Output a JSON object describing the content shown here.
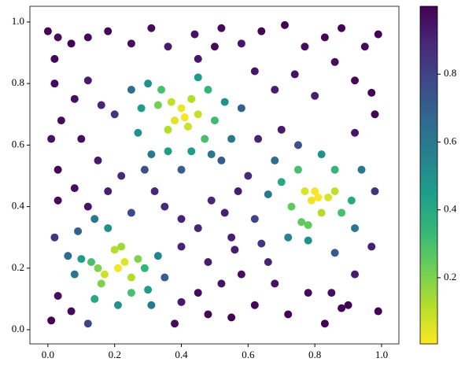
{
  "chart_data": {
    "type": "scatter",
    "x": [
      0.4,
      0.41,
      0.38,
      0.37,
      0.42,
      0.36,
      0.43,
      0.33,
      0.45,
      0.34,
      0.3,
      0.28,
      0.47,
      0.48,
      0.36,
      0.5,
      0.27,
      0.31,
      0.43,
      0.49,
      0.45,
      0.25,
      0.53,
      0.55,
      0.4,
      0.29,
      0.52,
      0.2,
      0.58,
      0.8,
      0.79,
      0.81,
      0.77,
      0.84,
      0.86,
      0.78,
      0.76,
      0.82,
      0.75,
      0.88,
      0.73,
      0.86,
      0.7,
      0.78,
      0.91,
      0.72,
      0.82,
      0.66,
      0.92,
      0.68,
      0.86,
      0.94,
      0.62,
      0.75,
      0.98,
      0.64,
      0.21,
      0.17,
      0.23,
      0.2,
      0.15,
      0.16,
      0.25,
      0.22,
      0.27,
      0.13,
      0.14,
      0.25,
      0.29,
      0.1,
      0.18,
      0.3,
      0.14,
      0.08,
      0.21,
      0.31,
      0.06,
      0.09,
      0.33,
      0.02,
      0.12,
      0.25,
      0.35,
      0.0,
      0.03,
      0.07,
      0.12,
      0.18,
      0.25,
      0.31,
      0.36,
      0.44,
      0.52,
      0.58,
      0.64,
      0.71,
      0.77,
      0.83,
      0.88,
      0.95,
      0.99,
      0.02,
      0.08,
      0.12,
      0.16,
      0.62,
      0.68,
      0.74,
      0.8,
      0.86,
      0.92,
      0.97,
      0.01,
      0.04,
      0.1,
      0.15,
      0.03,
      0.08,
      0.12,
      0.03,
      0.18,
      0.22,
      0.63,
      0.7,
      0.92,
      0.98,
      0.57,
      0.53,
      0.49,
      0.45,
      0.4,
      0.48,
      0.55,
      0.52,
      0.45,
      0.58,
      0.62,
      0.55,
      0.48,
      0.4,
      0.68,
      0.72,
      0.78,
      0.83,
      0.88,
      0.92,
      0.97,
      0.99,
      0.03,
      0.07,
      0.01,
      0.35,
      0.4,
      0.32,
      0.02,
      0.45,
      0.5,
      0.9,
      0.85,
      0.66,
      0.38,
      0.56,
      0.6
    ],
    "y": [
      0.72,
      0.69,
      0.68,
      0.74,
      0.66,
      0.65,
      0.75,
      0.73,
      0.7,
      0.78,
      0.8,
      0.72,
      0.62,
      0.78,
      0.58,
      0.68,
      0.64,
      0.57,
      0.58,
      0.57,
      0.82,
      0.78,
      0.74,
      0.62,
      0.52,
      0.52,
      0.55,
      0.7,
      0.72,
      0.45,
      0.42,
      0.43,
      0.45,
      0.43,
      0.45,
      0.34,
      0.35,
      0.38,
      0.52,
      0.38,
      0.4,
      0.52,
      0.48,
      0.29,
      0.42,
      0.3,
      0.57,
      0.44,
      0.33,
      0.55,
      0.25,
      0.52,
      0.36,
      0.6,
      0.45,
      0.28,
      0.2,
      0.18,
      0.22,
      0.26,
      0.2,
      0.15,
      0.17,
      0.27,
      0.23,
      0.22,
      0.1,
      0.12,
      0.2,
      0.23,
      0.33,
      0.13,
      0.36,
      0.18,
      0.08,
      0.08,
      0.24,
      0.32,
      0.24,
      0.3,
      0.02,
      0.38,
      0.17,
      0.97,
      0.95,
      0.93,
      0.95,
      0.97,
      0.93,
      0.98,
      0.92,
      0.96,
      0.98,
      0.93,
      0.97,
      0.99,
      0.92,
      0.95,
      0.98,
      0.92,
      0.96,
      0.8,
      0.75,
      0.81,
      0.73,
      0.84,
      0.78,
      0.83,
      0.76,
      0.87,
      0.81,
      0.77,
      0.62,
      0.68,
      0.62,
      0.55,
      0.52,
      0.46,
      0.4,
      0.42,
      0.45,
      0.5,
      0.62,
      0.65,
      0.64,
      0.7,
      0.45,
      0.38,
      0.42,
      0.33,
      0.27,
      0.22,
      0.3,
      0.15,
      0.12,
      0.18,
      0.08,
      0.04,
      0.05,
      0.09,
      0.15,
      0.05,
      0.12,
      0.02,
      0.07,
      0.18,
      0.27,
      0.06,
      0.11,
      0.06,
      0.03,
      0.4,
      0.36,
      0.45,
      0.88,
      0.88,
      0.92,
      0.08,
      0.12,
      0.22,
      0.02,
      0.26,
      0.5
    ],
    "c": [
      0.03,
      0.02,
      0.05,
      0.1,
      0.08,
      0.12,
      0.12,
      0.22,
      0.09,
      0.3,
      0.5,
      0.45,
      0.3,
      0.35,
      0.45,
      0.32,
      0.5,
      0.6,
      0.45,
      0.6,
      0.45,
      0.65,
      0.5,
      0.6,
      0.7,
      0.75,
      0.72,
      0.85,
      0.7,
      0.02,
      0.03,
      0.01,
      0.06,
      0.06,
      0.1,
      0.25,
      0.25,
      0.12,
      0.3,
      0.3,
      0.25,
      0.35,
      0.4,
      0.5,
      0.4,
      0.55,
      0.5,
      0.6,
      0.6,
      0.65,
      0.72,
      0.6,
      0.8,
      0.75,
      0.85,
      0.85,
      0.02,
      0.08,
      0.05,
      0.12,
      0.2,
      0.2,
      0.12,
      0.15,
      0.2,
      0.3,
      0.4,
      0.3,
      0.35,
      0.45,
      0.5,
      0.45,
      0.6,
      0.6,
      0.5,
      0.6,
      0.65,
      0.7,
      0.55,
      0.85,
      0.8,
      0.78,
      0.7,
      0.99,
      0.97,
      1.0,
      0.98,
      0.99,
      0.96,
      0.97,
      0.93,
      0.95,
      0.98,
      0.94,
      0.99,
      1.0,
      0.97,
      0.99,
      1.0,
      0.98,
      1.0,
      0.98,
      0.96,
      0.93,
      0.9,
      0.94,
      0.92,
      0.95,
      0.91,
      0.97,
      0.98,
      1.0,
      0.95,
      0.97,
      0.96,
      0.93,
      0.99,
      0.97,
      0.95,
      0.98,
      0.91,
      0.88,
      0.9,
      0.93,
      0.94,
      0.99,
      0.92,
      0.91,
      0.89,
      0.9,
      0.9,
      0.92,
      0.91,
      0.95,
      0.97,
      0.96,
      0.99,
      1.0,
      0.99,
      0.93,
      0.95,
      1.0,
      0.97,
      1.0,
      0.99,
      0.93,
      0.91,
      1.0,
      0.96,
      0.98,
      1.0,
      0.88,
      0.9,
      0.89,
      0.99,
      0.94,
      0.97,
      1.0,
      0.96,
      0.9,
      0.97,
      0.92,
      0.88
    ],
    "xlim": [
      -0.054,
      1.052
    ],
    "ylim": [
      -0.046,
      1.051
    ],
    "xticks": [
      {
        "value": 0,
        "label": "0.0"
      },
      0.2,
      0.4,
      0.6,
      0.8,
      {
        "value": 1,
        "label": "1.0"
      }
    ],
    "yticks": [
      {
        "value": 0,
        "label": "0.0"
      },
      0.2,
      0.4,
      0.6,
      0.8,
      {
        "value": 1,
        "label": "1.0"
      }
    ],
    "clim": [
      0.005,
      1.0
    ],
    "cticks": [
      0.2,
      0.4,
      0.6,
      0.8
    ],
    "colormap": [
      "#fde725",
      "#b5de2b",
      "#6ece58",
      "#35b779",
      "#1f9e89",
      "#26828e",
      "#31688e",
      "#3e4989",
      "#482878",
      "#440154"
    ]
  }
}
